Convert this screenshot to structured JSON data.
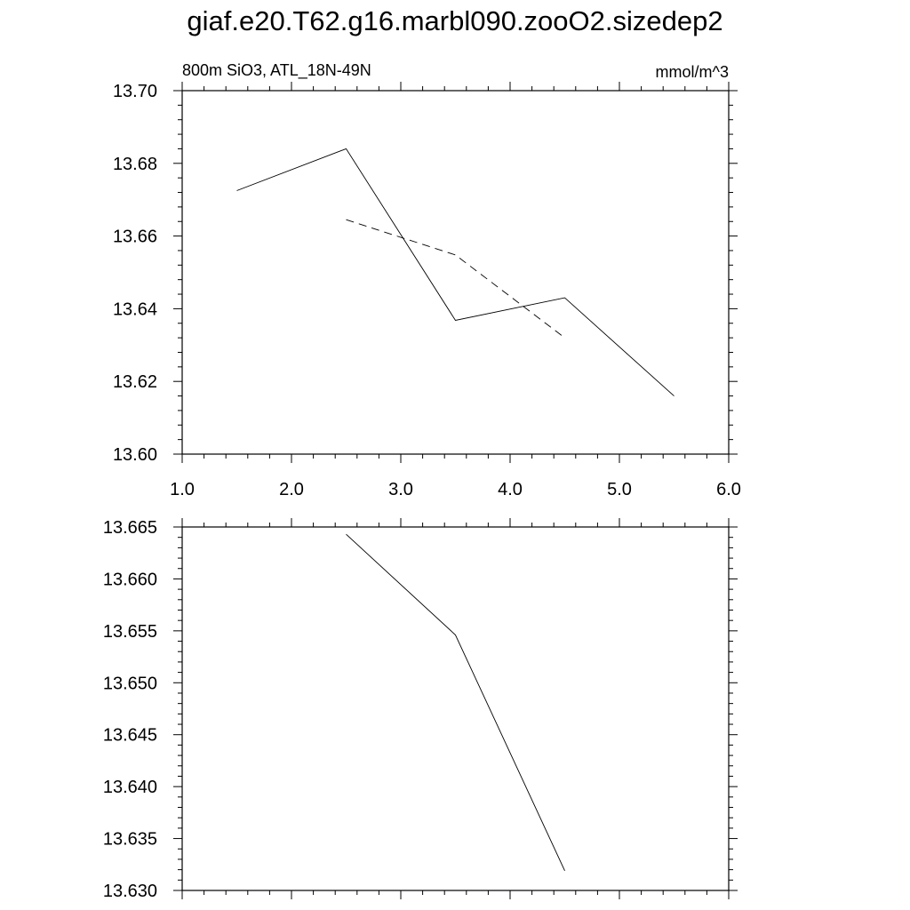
{
  "title": "giaf.e20.T62.g16.marbl090.zooO2.sizedep2",
  "chart_data": [
    {
      "type": "line",
      "left_string": "800m SiO3, ATL_18N-49N",
      "right_string": "mmol/m^3",
      "xlim": [
        1.0,
        6.0
      ],
      "ylim": [
        13.6,
        13.7
      ],
      "xticks": [
        "1.0",
        "2.0",
        "3.0",
        "4.0",
        "5.0",
        "6.0"
      ],
      "yticks": [
        "13.60",
        "13.62",
        "13.64",
        "13.66",
        "13.68",
        "13.70"
      ],
      "series": [
        {
          "style": "solid",
          "x": [
            1.5,
            2.5,
            3.5,
            4.5,
            5.5
          ],
          "y": [
            13.6725,
            13.684,
            13.6368,
            13.643,
            13.616
          ]
        },
        {
          "style": "dashed",
          "x": [
            2.5,
            3.5,
            4.5
          ],
          "y": [
            13.6645,
            13.6548,
            13.632
          ]
        }
      ]
    },
    {
      "type": "line",
      "xlim": [
        1.0,
        6.0
      ],
      "ylim": [
        13.63,
        13.665
      ],
      "yticks": [
        "13.630",
        "13.635",
        "13.640",
        "13.645",
        "13.650",
        "13.655",
        "13.660",
        "13.665"
      ],
      "series": [
        {
          "style": "solid",
          "x": [
            2.5,
            3.5,
            4.5
          ],
          "y": [
            13.6643,
            13.6546,
            13.6319
          ]
        }
      ]
    }
  ]
}
